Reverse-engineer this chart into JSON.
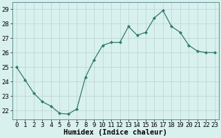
{
  "x": [
    0,
    1,
    2,
    3,
    4,
    5,
    6,
    7,
    8,
    9,
    10,
    11,
    12,
    13,
    14,
    15,
    16,
    17,
    18,
    19,
    20,
    21,
    22,
    23
  ],
  "y": [
    25.0,
    24.1,
    23.2,
    22.6,
    22.3,
    21.8,
    21.75,
    22.1,
    24.3,
    25.5,
    26.5,
    26.7,
    26.7,
    27.8,
    27.2,
    27.4,
    28.4,
    28.9,
    27.8,
    27.4,
    26.5,
    26.1,
    26.0,
    26.0
  ],
  "line_color": "#2d7a6a",
  "marker": "D",
  "marker_size": 2,
  "bg_color": "#d8f0ee",
  "grid_color": "#c0d8d4",
  "xlabel": "Humidex (Indice chaleur)",
  "xlim": [
    -0.5,
    23.5
  ],
  "ylim": [
    21.4,
    29.5
  ],
  "yticks": [
    22,
    23,
    24,
    25,
    26,
    27,
    28,
    29
  ],
  "xticks": [
    0,
    1,
    2,
    3,
    4,
    5,
    6,
    7,
    8,
    9,
    10,
    11,
    12,
    13,
    14,
    15,
    16,
    17,
    18,
    19,
    20,
    21,
    22,
    23
  ],
  "tick_fontsize": 6.5,
  "xlabel_fontsize": 7.5
}
